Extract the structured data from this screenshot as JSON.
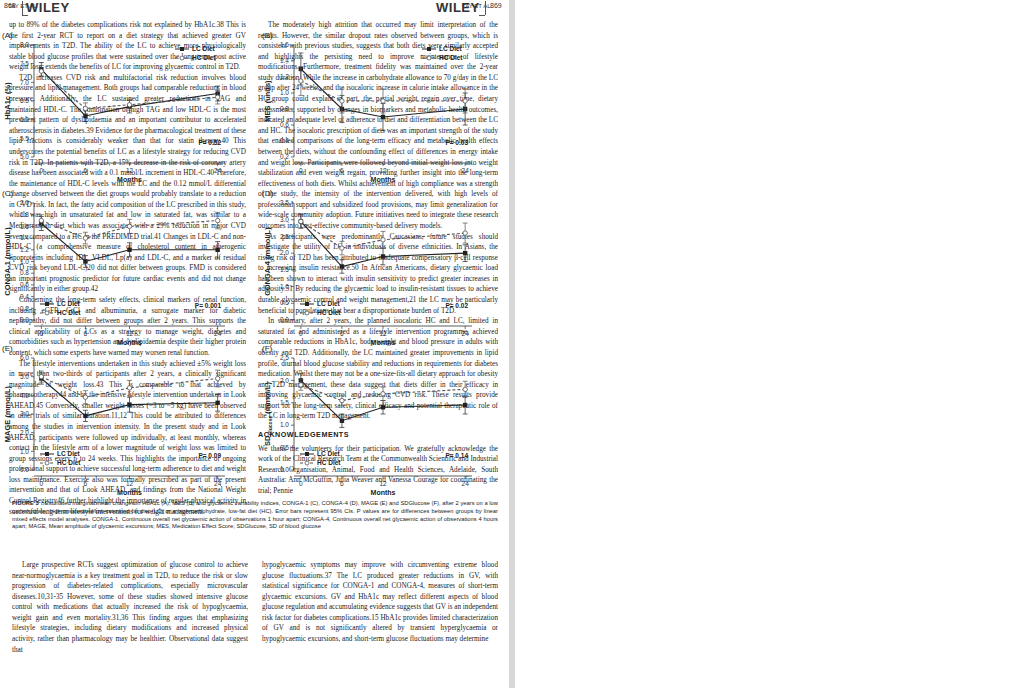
{
  "chart_data": [
    {
      "type": "line",
      "panel": "(A)",
      "ylabel": "HbA1c (%)",
      "xlabel": "Months",
      "annotation": "P= 0.52",
      "legend": "upper right",
      "x": [
        0,
        6,
        12,
        24
      ],
      "xlim": [
        -1,
        25
      ],
      "xticks": [
        0,
        6,
        12,
        24
      ],
      "ylim": [
        5.0,
        8.0
      ],
      "yticks": [
        {
          "value": 5,
          "label": "5.0"
        },
        5.5,
        {
          "value": 6,
          "label": "6.0"
        },
        6.5,
        {
          "value": 7,
          "label": "7.0"
        },
        7.5,
        {
          "value": 8,
          "label": "8.0"
        }
      ],
      "series": [
        {
          "name": "LC Diet",
          "color": "#222222",
          "marker": "square",
          "line_style": "solid",
          "values": [
            7.35,
            6.1,
            6.35,
            6.7
          ],
          "errors": [
            0.18,
            0.15,
            0.17,
            0.2
          ]
        },
        {
          "name": "HC Diet",
          "color": "#555555",
          "marker": "circle",
          "line_style": "dashed",
          "values": [
            7.3,
            6.3,
            6.4,
            6.6
          ],
          "errors": [
            0.15,
            0.15,
            0.15,
            0.18
          ]
        }
      ]
    },
    {
      "type": "line",
      "panel": "(B)",
      "ylabel": "MES (units)",
      "xlabel": "Months",
      "annotation": "P= 0.03",
      "legend": "upper right",
      "x": [
        0,
        6,
        12,
        24
      ],
      "xlim": [
        -1,
        25
      ],
      "xticks": [
        0,
        6,
        12,
        24
      ],
      "ylim": [
        0.2,
        1.6
      ],
      "yticks": [
        0.2,
        0.4,
        0.6,
        0.8,
        {
          "value": 1,
          "label": "1.0"
        },
        1.2,
        1.4,
        1.6
      ],
      "series": [
        {
          "name": "LC Diet",
          "color": "#222222",
          "marker": "square",
          "line_style": "solid",
          "values": [
            1.3,
            0.8,
            0.7,
            0.8
          ],
          "errors": [
            0.2,
            0.17,
            0.17,
            0.2
          ]
        },
        {
          "name": "HC Diet",
          "color": "#555555",
          "marker": "circle",
          "line_style": "dashed",
          "values": [
            1.15,
            0.9,
            0.9,
            0.9
          ],
          "errors": [
            0.18,
            0.15,
            0.15,
            0.15
          ]
        }
      ]
    },
    {
      "type": "line",
      "panel": "(C)",
      "ylabel": "CONGA-1 (mmol/L)",
      "xlabel": "Months",
      "annotation": "P= 0.001",
      "legend": "lower left",
      "x": [
        0,
        6,
        12,
        24
      ],
      "xlim": [
        -1,
        25
      ],
      "xticks": [
        0,
        6,
        12,
        24
      ],
      "ylim": [
        0.0,
        2.0
      ],
      "yticks": [
        {
          "value": 0,
          "label": "0.0"
        },
        0.2,
        0.4,
        0.6,
        0.8,
        {
          "value": 1,
          "label": "1.0"
        },
        1.2,
        1.4,
        1.6,
        1.8,
        {
          "value": 2,
          "label": "2.0"
        }
      ],
      "series": [
        {
          "name": "LC Diet",
          "color": "#222222",
          "marker": "square",
          "line_style": "solid",
          "values": [
            1.65,
            1.0,
            1.2,
            1.2
          ],
          "errors": [
            0.12,
            0.1,
            0.12,
            0.14
          ]
        },
        {
          "name": "HC Diet",
          "color": "#555555",
          "marker": "circle",
          "line_style": "dashed",
          "values": [
            1.7,
            1.4,
            1.6,
            1.7
          ],
          "errors": [
            0.1,
            0.1,
            0.12,
            0.14
          ]
        }
      ]
    },
    {
      "type": "line",
      "panel": "(D)",
      "ylabel": "CONGA-4 (mmol/L)",
      "xlabel": "Months",
      "annotation": "P= 0.02",
      "legend": "lower left",
      "x": [
        0,
        6,
        12,
        24
      ],
      "xlim": [
        -1,
        25
      ],
      "xticks": [
        0,
        6,
        12,
        24
      ],
      "ylim": [
        0.0,
        3.5
      ],
      "yticks": [
        {
          "value": 0,
          "label": "0.0"
        },
        0.5,
        {
          "value": 1,
          "label": "1.0"
        },
        1.5,
        {
          "value": 2,
          "label": "2.0"
        },
        2.5,
        {
          "value": 3,
          "label": "3.0"
        },
        3.5
      ],
      "series": [
        {
          "name": "LC Diet",
          "color": "#222222",
          "marker": "square",
          "line_style": "solid",
          "values": [
            2.95,
            1.6,
            1.9,
            2.0
          ],
          "errors": [
            0.2,
            0.2,
            0.25,
            0.25
          ]
        },
        {
          "name": "HC Diet",
          "color": "#555555",
          "marker": "circle",
          "line_style": "dashed",
          "values": [
            2.95,
            2.15,
            2.4,
            2.6
          ],
          "errors": [
            0.2,
            0.2,
            0.25,
            0.3
          ]
        }
      ]
    },
    {
      "type": "line",
      "panel": "(E)",
      "ylabel": "MAGE (mmol/L)",
      "xlabel": "Months",
      "annotation": "P= 0.09",
      "legend": "lower left",
      "x": [
        0,
        6,
        12,
        24
      ],
      "xlim": [
        -1,
        25
      ],
      "xticks": [
        0,
        6,
        12,
        24
      ],
      "ylim": [
        0.0,
        6.0
      ],
      "yticks": [
        {
          "value": 0,
          "label": "0.0"
        },
        {
          "value": 1,
          "label": "1.0"
        },
        {
          "value": 2,
          "label": "2.0"
        },
        {
          "value": 3,
          "label": "3.0"
        },
        {
          "value": 4,
          "label": "4.0"
        },
        {
          "value": 5,
          "label": "5.0"
        },
        {
          "value": 6,
          "label": "6.0"
        }
      ],
      "series": [
        {
          "name": "LC Diet",
          "color": "#222222",
          "marker": "square",
          "line_style": "solid",
          "values": [
            4.9,
            2.9,
            3.5,
            3.6
          ],
          "errors": [
            0.3,
            0.3,
            0.4,
            0.45
          ]
        },
        {
          "name": "HC Diet",
          "color": "#555555",
          "marker": "circle",
          "line_style": "dashed",
          "values": [
            5.0,
            3.9,
            4.4,
            4.9
          ],
          "errors": [
            0.3,
            0.35,
            0.4,
            0.45
          ]
        }
      ]
    },
    {
      "type": "line",
      "panel": "(F)",
      "ylabel": "SD",
      "ylabel_sub": "Glucose",
      "ylabel_rest": " (mmol/L)",
      "xlabel": "Months",
      "annotation": "P= 0.14",
      "legend": "lower left",
      "x": [
        0,
        6,
        12,
        24
      ],
      "xlim": [
        -1,
        25
      ],
      "xticks": [
        0,
        6,
        12,
        24
      ],
      "ylim": [
        0.0,
        2.5
      ],
      "yticks": [
        {
          "value": 0,
          "label": "0.0"
        },
        0.5,
        {
          "value": 1,
          "label": "1.0"
        },
        1.5,
        {
          "value": 2,
          "label": "2.0"
        },
        2.5
      ],
      "series": [
        {
          "name": "LC Diet",
          "color": "#222222",
          "marker": "square",
          "line_style": "solid",
          "values": [
            2.0,
            1.1,
            1.4,
            1.45
          ],
          "errors": [
            0.15,
            0.15,
            0.15,
            0.2
          ]
        },
        {
          "name": "HC Diet",
          "color": "#555555",
          "marker": "circle",
          "line_style": "dashed",
          "values": [
            1.9,
            1.55,
            1.7,
            1.8
          ],
          "errors": [
            0.12,
            0.12,
            0.15,
            0.18
          ]
        }
      ]
    }
  ],
  "caption": {
    "label": "FIGURE 3",
    "text": "Estimated marginal mean changes in HbA1c (A), MES (B) and glycaemic variability indices, CONGA-1 (C), CONGA-4 (D), MAGE (E) and SDGlucose (F), after 2 years on a low carbohydrate, high-unsaturated/low-saturated fat diet (LC) or a high-carbohydrate, low-fat diet (HC). Error bars represent 95% CIs. P values are for differences between groups by linear mixed effects model analyses. CONGA-1, Continuous overall net glycaemic action of observations 1 hour apart; CONGA-4, Continuous overall net glycaemic action of observations 4 hours apart; MAGE, Mean amplitude of glycaemic excursions; MES, Medication Effect Score; SDGlucose, SD of blood glucose"
  },
  "pages": [
    {
      "header": {
        "page_number": "868",
        "brand": "WILEY",
        "running_head": "TAY ET AL."
      },
      "columns": [
        {
          "items": [
            {
              "type": "p",
              "text": "Large prospective RCTs suggest optimization of glucose control to achieve near-normoglycaemia is a key treatment goal in T2D, to reduce the risk or slow progression of diabetes-related complications, especially microvascular diseases.10,31-35 However, some of these studies showed intensive glucose control with medications that actually increased the risk of hypoglycaemia, weight gain and even mortality.31,36 This finding argues that emphasizing lifestyle strategies, including dietary modifications and increased physical activity, rather than pharmacology may be healthier. Observational data suggest that"
            }
          ]
        },
        {
          "items": [
            {
              "type": "p",
              "text": "hypoglycaemic symptoms may improve with circumventing extreme blood glucose fluctuations.37 The LC produced greater reductions in GV, with statistical significance for CONGA-1 and CONGA-4, measures of short-term glycaemic excursions. GV and HbA1c may reflect different aspects of blood glucose regulation and accumulating evidence suggests that GV is an independent risk factor for diabetes complications.15 HbA1c provides limited characterization of GV and is not significantly altered by transient hyperglycaemia or hypoglycaemic excursions, and short-term glucose fluctuations may determine"
            }
          ]
        }
      ]
    },
    {
      "header": {
        "page_number": "869",
        "brand": "WILEY",
        "running_head": "TAY ET AL."
      },
      "columns": [
        {
          "items": [
            {
              "type": "p",
              "text": "up to 89% of the diabetes complications risk not explained by HbA1c.38 This is the first 2-year RCT to report on a diet strategy that achieved greater GV improvements in T2D. The ability of the LC to achieve more physiologically stable blood glucose profiles that were sustained over the long term, post active weight loss, extends the benefits of LC for improving glycaemic control in T2D."
            },
            {
              "type": "p",
              "text": "T2D increases CVD risk and multifactorial risk reduction involves blood pressure and lipid management. Both groups had comparable reductions in blood pressure. Additionally, the LC sustained greater reductions in TAG and maintained HDL-C. The combination of high TAG and low HDL-C is the most prevalent pattern of dyslipidaemia and an important contributor to accelerated atherosclerosis in diabetes.39 Evidence for the pharmacological treatment of these lipid fractions is considerably weaker than that for statin therapy.40 This underscores the potential benefits of LC as a lifestyle strategy for reducing CVD risk in T2D. In patients with T2D, a 15% decrease in the risk of coronary artery disease has been associated with a 0.1 mmol/L increment in HDL-C.40 Therefore, the maintenance of HDL-C levels with the LC and the 0.12 mmol/L differential change observed between the diet groups would probably translate to a reduction in CVD risk. In fact, the fatty acid composition of the LC prescribed in this study, which was high in unsaturated fat and low in saturated fat, was similar to a Mediterranean diet which was associated with a 29% reduction in major CVD events compared to a HC in the PREDIMED trial.41 Changes in LDL-C and non-HDL-C (a comprehensive measure of cholesterol content in atherogenic lipoproteins including IDL, VLDL, Lp(a) and LDL-C, and a marker of residual CVD risk beyond LDL-C)20 did not differ between groups. FMD is considered an important prognostic predictor for future cardiac events and did not change significantly in either group.42"
            },
            {
              "type": "p",
              "text": "Concerning the long-term safety effects, clinical markers of renal function, including eGFR, CrCl and albuminuria, a surrogate marker for diabetic nephropathy, did not differ between groups after 2 years. This supports the clinical applicability of LCs as a strategy to manage weight, diabetes and comorbidities such as hypertension and dyslipidaemia despite their higher protein content, which some experts have warned may worsen renal function."
            },
            {
              "type": "p",
              "text": "The lifestyle interventions undertaken in this study achieved ±5% weight loss in more than two-thirds of participants after 2 years, a clinically significant magnitude of weight loss.43 This is comparable to that achieved by pharmacotherapy44 and by the intensive lifestyle intervention undertaken in Look AHEAD.45 Conversely, smaller weight losses (−3 to −5 kg) have been observed in other trials of similar duration.11,12 This could be attributed to differences among the studies in intervention intensity. In the present study and in Look AHEAD, participants were followed up individually, at least monthly, whereas contact in the lifestyle arm of a lower magnitude of weight loss was limited to group sessions every 6 to 24 weeks. This highlights the importance of ongoing professional support to achieve successful long-term adherence to diet and weight loss maintenance. Exercise also was formally prescribed as part of the present intervention and that of Look AHEAD, and findings from the National Weight Control Registry46 further highlight the importance of regular physical activity in successful long-term lifestyle interventions for weight management."
            }
          ]
        },
        {
          "items": [
            {
              "type": "p",
              "text": "The moderately high attrition that occurred may limit interpretation of the results. However, the similar dropout rates observed between groups, which is consistent with previous studies, suggests that both diets were similarly accepted and highlights the persisting need to improve maintenance of lifestyle modifications. Furthermore, treatment fidelity was maintained over the 2-year study duration. While the increase in carbohydrate allowance to 70 g/day in the LC group after 24 weeks, and the isocaloric increase in calorie intake allowance in the HC group could explain in part, the partial weight regain over time, dietary assessments, supported by changes in biomarkers and metabolic health outcomes, indicated an adequate level of adherence to diet and differentiation between the LC and HC. The isocaloric prescription of diets was an important strength of the study that enabled comparisons of the long-term efficacy and metabolic health effects between the diets, without the confounding effect of differences in energy intake and weight loss. Participants were followed beyond initial weight loss into weight stabilization and even weight regain, providing further insight into the long-term effectiveness of both diets. Whilst achievement of high compliance was a strength of the study, the intensity of the intervention delivered, with high levels of professional support and subsidized food provisions, may limit generalization for wide-scale community adoption. Future initiatives need to integrate these research outcomes into cost-effective community-based delivery models."
            },
            {
              "type": "p",
              "text": "As participants were predominantly Caucasians, future studies should investigate the utility of LC in individuals of diverse ethnicities. In Asians, the rising risk of T2D has been attributed to inadequate compensatory β-cell response to increasing insulin resistance.50 In African Americans, dietary glycaemic load has been shown to interact with insulin sensitivity to predict greater increases in adiposity.51 By reducing the glycaemic load to insulin-resistant tissues to achieve durable glycaemic control and weight management,21 the LC may be particularly beneficial to populations that bear a disproportionate burden of T2D."
            },
            {
              "type": "p",
              "text": "In summary, after 2 years, the planned isocaloric HC and LC, limited in saturated fat and administered as a lifestyle intervention programme, achieved comparable reductions in HbA1c, body-weight and blood pressure in adults with obesity and T2D. Additionally, the LC maintained greater improvements in lipid profile, diurnal blood glucose stability and reductions in requirements for diabetes medication. Whilst there may not be a one-size-fits-all dietary approach for obesity and T2D management, these data suggest that diets differ in their efficacy in improving glycaemic control and reducing CVD risk. These results provide support for the long-term safety, clinical efficacy and potential therapeutic role of the LC in long-term T2D management."
            },
            {
              "type": "h",
              "text": "ACKNOWLEDGEMENTS"
            },
            {
              "type": "p",
              "text": "We thank the volunteers for their participation. We gratefully acknowledge the work of the Clinical Research Team at the Commonwealth Scientific and Industrial Research Organisation, Animal, Food and Health Sciences, Adelaide, South Australia: Ann McGuffin, Julia Weaver and Vanessa Courage for coordinating the trial; Pennie"
            }
          ]
        }
      ]
    }
  ]
}
